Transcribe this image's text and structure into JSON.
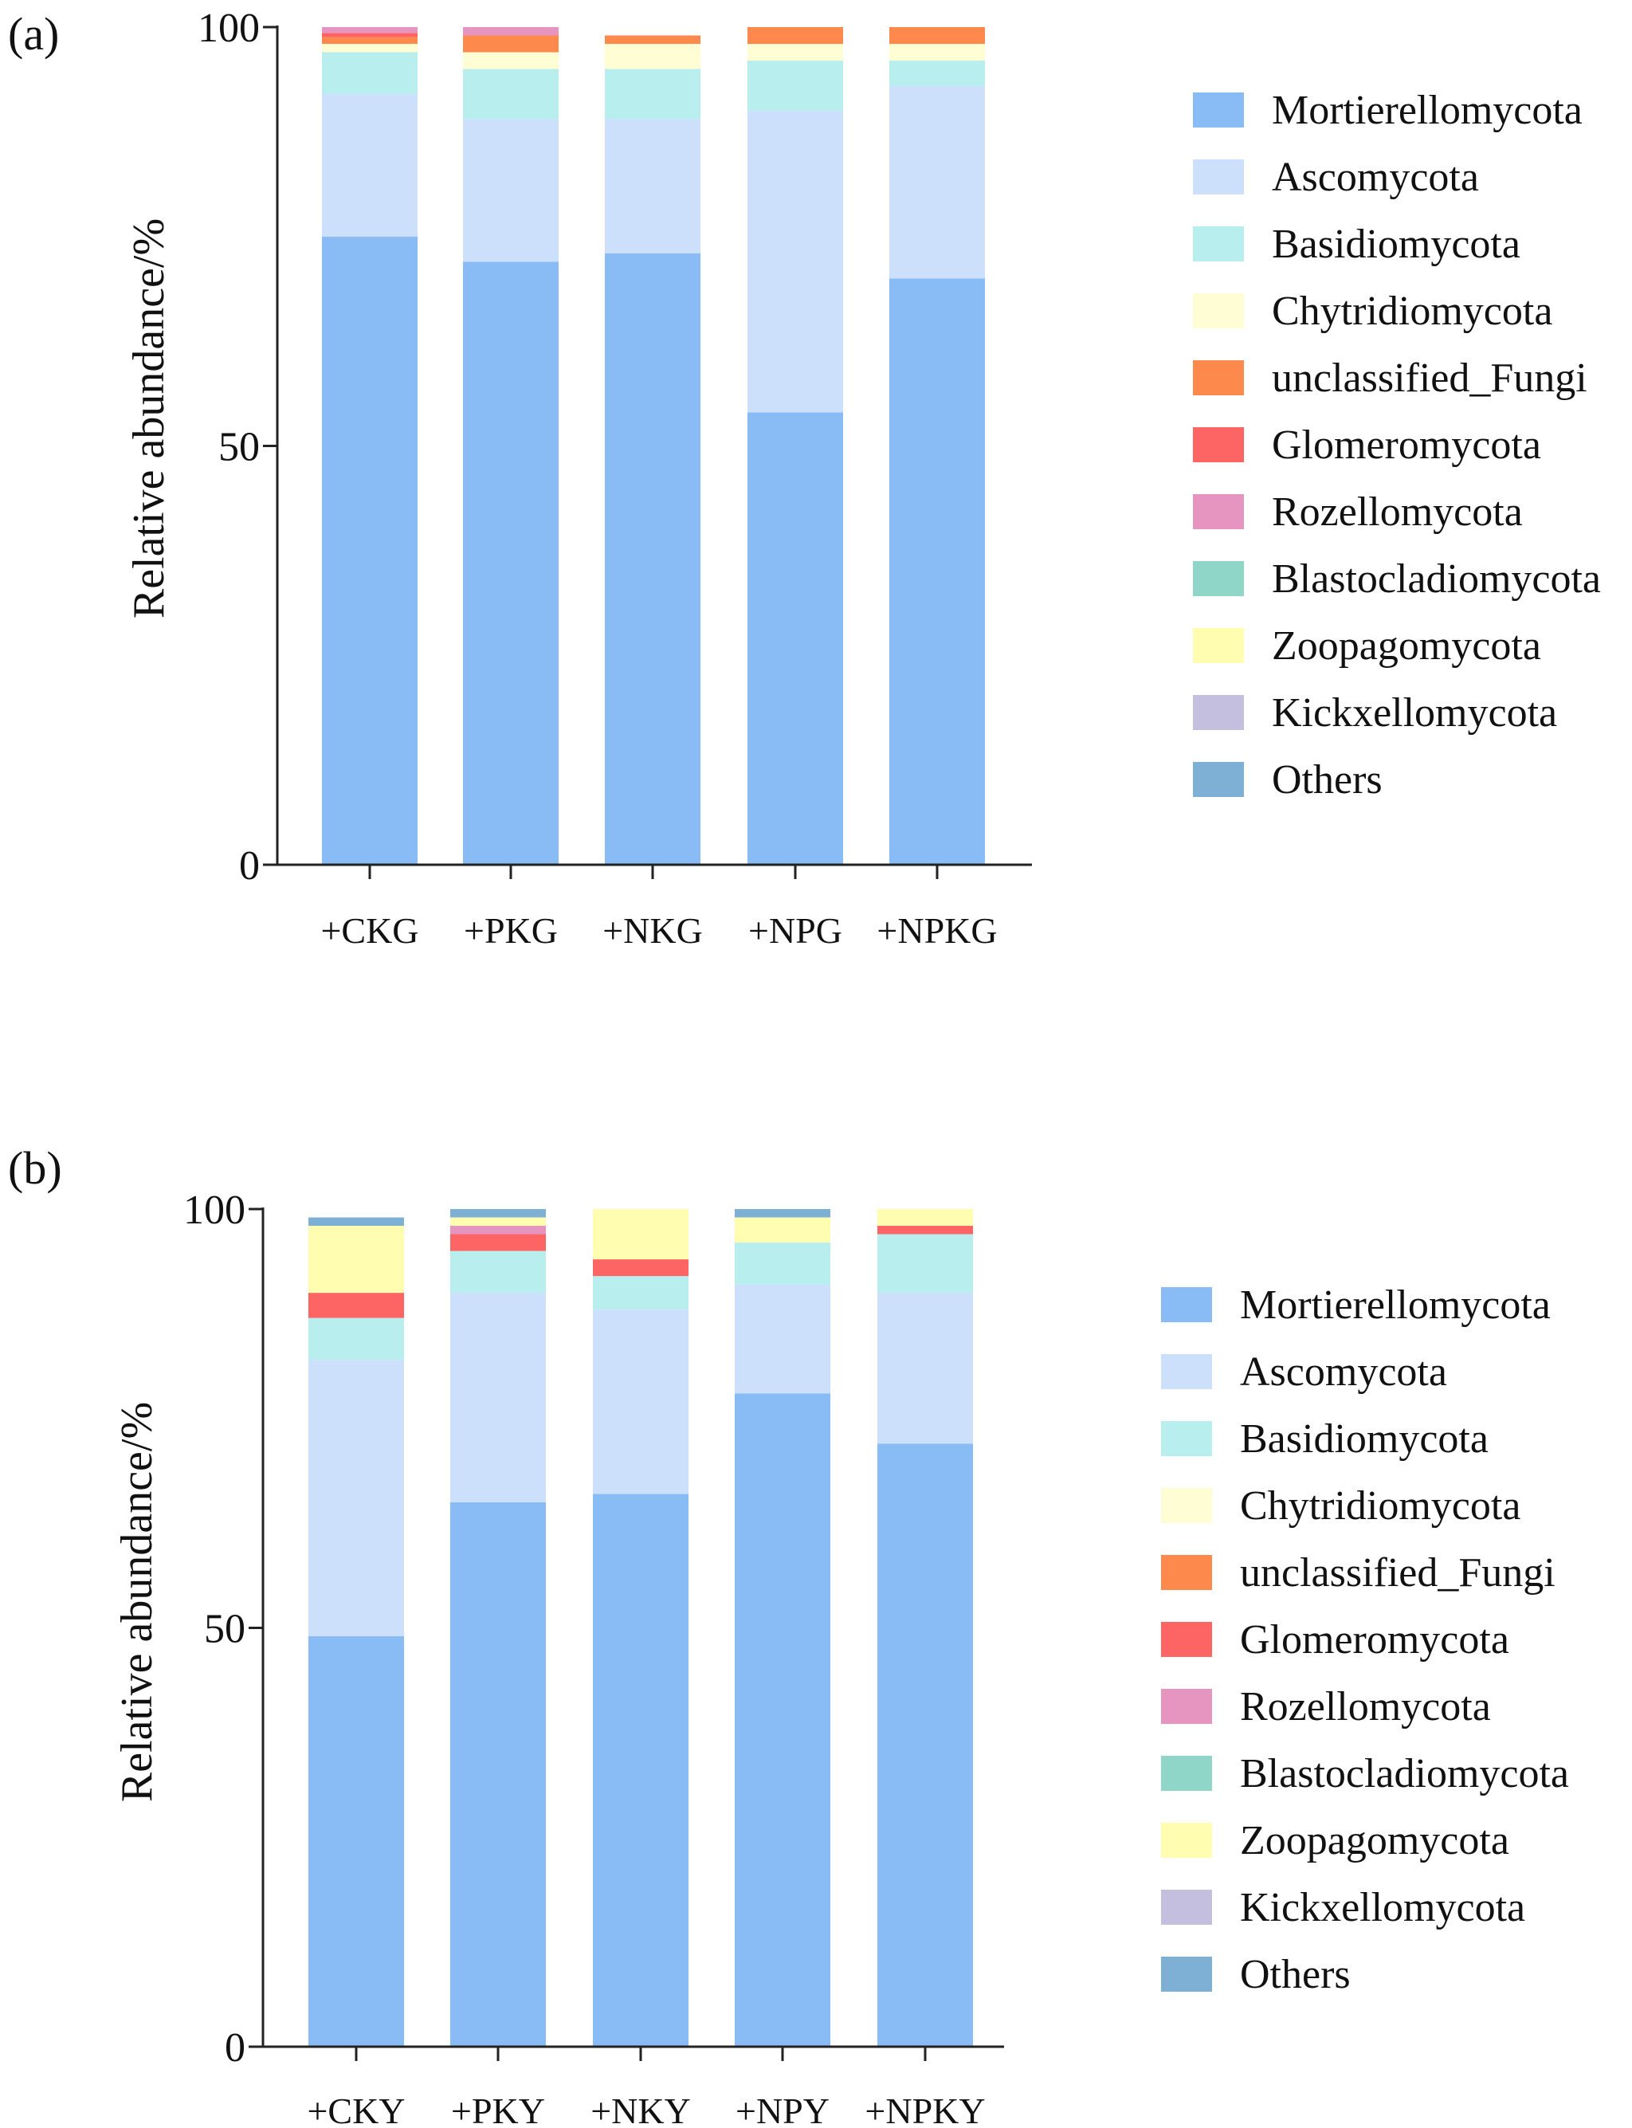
{
  "colors": {
    "Mortierellomycota": "#89bbf4",
    "Ascomycota": "#cde0fb",
    "Basidiomycota": "#b9eeee",
    "Chytridiomycota": "#fefdd3",
    "unclassified_Fungi": "#fd8a4c",
    "Glomeromycota": "#fd6464",
    "Rozellomycota": "#e694c0",
    "Blastocladiomycota": "#90d6c8",
    "Zoopagomycota": "#fefdb0",
    "Kickxellomycota": "#c4bfde",
    "Others": "#7eb0d5"
  },
  "chart_data": [
    {
      "panel_label": "(a)",
      "type": "bar",
      "stacked": true,
      "ylabel": "Relative abundance/%",
      "ylim": [
        0,
        100
      ],
      "yticks": [
        "0",
        "50",
        "100"
      ],
      "categories": [
        "+CKG",
        "+PKG",
        "+NKG",
        "+NPG",
        "+NPKG"
      ],
      "series": [
        {
          "name": "Mortierellomycota",
          "values": [
            75,
            72,
            73,
            54,
            70
          ]
        },
        {
          "name": "Ascomycota",
          "values": [
            17,
            17,
            16,
            36,
            23
          ]
        },
        {
          "name": "Basidiomycota",
          "values": [
            5,
            6,
            6,
            6,
            3
          ]
        },
        {
          "name": "Chytridiomycota",
          "values": [
            1,
            2,
            3,
            2,
            2
          ]
        },
        {
          "name": "unclassified_Fungi",
          "values": [
            0.8,
            2,
            1,
            2,
            2
          ]
        },
        {
          "name": "Glomeromycota",
          "values": [
            0.5,
            0,
            0,
            0,
            0
          ]
        },
        {
          "name": "Rozellomycota",
          "values": [
            0.7,
            1,
            0,
            0,
            0
          ]
        },
        {
          "name": "Blastocladiomycota",
          "values": [
            0,
            0,
            0,
            0,
            0
          ]
        },
        {
          "name": "Zoopagomycota",
          "values": [
            0,
            0,
            0,
            0,
            0
          ]
        },
        {
          "name": "Kickxellomycota",
          "values": [
            0,
            0,
            0,
            0,
            0
          ]
        },
        {
          "name": "Others",
          "values": [
            0,
            0,
            0,
            0,
            0
          ]
        }
      ],
      "legend": [
        "Mortierellomycota",
        "Ascomycota",
        "Basidiomycota",
        "Chytridiomycota",
        "unclassified_Fungi",
        "Glomeromycota",
        "Rozellomycota",
        "Blastocladiomycota",
        "Zoopagomycota",
        "Kickxellomycota",
        "Others"
      ],
      "legend_position": "right"
    },
    {
      "panel_label": "(b)",
      "type": "bar",
      "stacked": true,
      "ylabel": "Relative abundance/%",
      "ylim": [
        0,
        100
      ],
      "yticks": [
        "0",
        "50",
        "100"
      ],
      "categories": [
        "+CKY",
        "+PKY",
        "+NKY",
        "+NPY",
        "+NPKY"
      ],
      "series": [
        {
          "name": "Mortierellomycota",
          "values": [
            49,
            65,
            66,
            78,
            72
          ]
        },
        {
          "name": "Ascomycota",
          "values": [
            33,
            25,
            22,
            13,
            18
          ]
        },
        {
          "name": "Basidiomycota",
          "values": [
            5,
            5,
            4,
            5,
            7
          ]
        },
        {
          "name": "Chytridiomycota",
          "values": [
            0,
            0,
            0,
            0,
            0
          ]
        },
        {
          "name": "unclassified_Fungi",
          "values": [
            0,
            0,
            0,
            0,
            0
          ]
        },
        {
          "name": "Glomeromycota",
          "values": [
            3,
            2,
            2,
            0,
            1
          ]
        },
        {
          "name": "Rozellomycota",
          "values": [
            0,
            1,
            0,
            0,
            0
          ]
        },
        {
          "name": "Blastocladiomycota",
          "values": [
            0,
            0,
            0,
            0,
            0
          ]
        },
        {
          "name": "Zoopagomycota",
          "values": [
            8,
            1,
            6,
            3,
            2
          ]
        },
        {
          "name": "Kickxellomycota",
          "values": [
            0,
            0,
            0,
            0,
            0
          ]
        },
        {
          "name": "Others",
          "values": [
            1,
            1,
            0,
            1,
            0
          ]
        }
      ],
      "legend": [
        "Mortierellomycota",
        "Ascomycota",
        "Basidiomycota",
        "Chytridiomycota",
        "unclassified_Fungi",
        "Glomeromycota",
        "Rozellomycota",
        "Blastocladiomycota",
        "Zoopagomycota",
        "Kickxellomycota",
        "Others"
      ],
      "legend_position": "right"
    }
  ]
}
